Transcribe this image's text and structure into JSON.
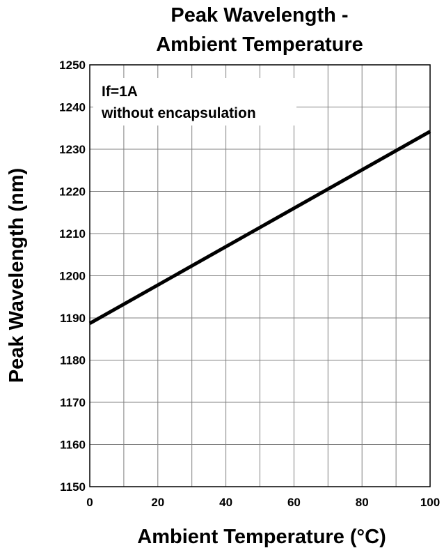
{
  "chart_data": {
    "type": "line",
    "title_lines": [
      "Peak Wavelength -",
      "Ambient Temperature"
    ],
    "xlabel": "Ambient Temperature (°C)",
    "ylabel": "Peak Wavelength (nm)",
    "xlim": [
      0,
      100
    ],
    "ylim": [
      1150,
      1250
    ],
    "x_ticks": [
      0,
      20,
      40,
      60,
      80,
      100
    ],
    "y_ticks": [
      1150,
      1160,
      1170,
      1180,
      1190,
      1200,
      1210,
      1220,
      1230,
      1240,
      1250
    ],
    "grid": true,
    "annotation_lines": [
      "If=1A",
      "without encapsulation"
    ],
    "series": [
      {
        "x": [
          0,
          100
        ],
        "y": [
          1188.7,
          1234.2
        ]
      }
    ],
    "colors": {
      "line": "#000000",
      "grid": "#808080"
    }
  }
}
